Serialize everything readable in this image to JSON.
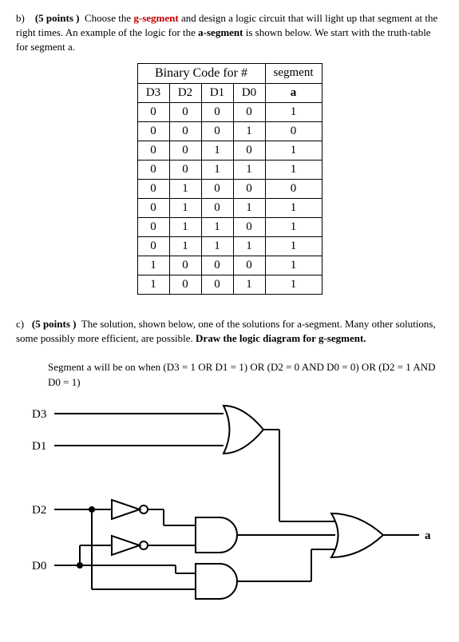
{
  "partB": {
    "label": "b)",
    "points": "(5 points )",
    "text1": "Choose the ",
    "highlight": "g-segment",
    "text2": " and design a logic circuit that will light up that segment at the right times. An example of the logic for the ",
    "bold1": "a-segment",
    "text3": " is shown below. We start with the truth-table for segment a."
  },
  "table": {
    "binaryHeader": "Binary Code for #",
    "segHeader": "segment",
    "cols": [
      "D3",
      "D2",
      "D1",
      "D0",
      "a"
    ],
    "rows": [
      [
        "0",
        "0",
        "0",
        "0",
        "1"
      ],
      [
        "0",
        "0",
        "0",
        "1",
        "0"
      ],
      [
        "0",
        "0",
        "1",
        "0",
        "1"
      ],
      [
        "0",
        "0",
        "1",
        "1",
        "1"
      ],
      [
        "0",
        "1",
        "0",
        "0",
        "0"
      ],
      [
        "0",
        "1",
        "0",
        "1",
        "1"
      ],
      [
        "0",
        "1",
        "1",
        "0",
        "1"
      ],
      [
        "0",
        "1",
        "1",
        "1",
        "1"
      ],
      [
        "1",
        "0",
        "0",
        "0",
        "1"
      ],
      [
        "1",
        "0",
        "0",
        "1",
        "1"
      ]
    ]
  },
  "partC": {
    "label": "c)",
    "points": "(5 points )",
    "text1": "The solution, shown below, one of the solutions for a-segment. Many other solutions, some possibly more efficient, are possible. ",
    "bold1": "Draw the logic diagram for g-segment."
  },
  "solution": {
    "text": "Segment a will be on when (D3 = 1 OR D1 = 1) OR (D2 = 0 AND D0 = 0) OR (D2 = 1 AND D0 = 1)"
  },
  "circuit": {
    "inputs": [
      "D3",
      "D1",
      "D2",
      "D0"
    ],
    "output": "a",
    "stroke": "#000000",
    "strokeWidth": 2
  }
}
